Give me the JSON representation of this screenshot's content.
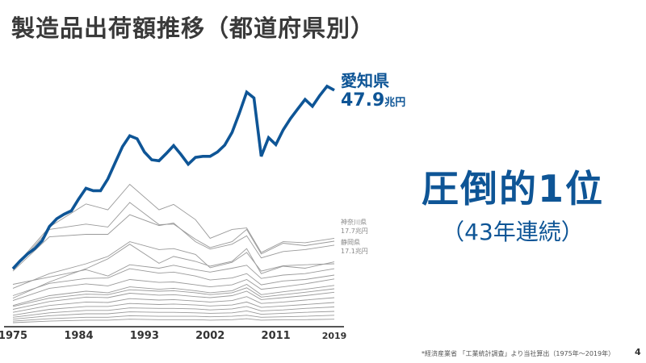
{
  "slide": {
    "title": "製造品出荷額推移（都道府県別）",
    "headline": "圧倒的1位",
    "subheadline": "（43年連続）",
    "footnote": "*経済産業省 「工業統計調査」より当社算出（1975年〜2019年）",
    "page_number": "4"
  },
  "labels": {
    "aichi_name": "愛知県",
    "aichi_value": "47.9",
    "aichi_unit": "兆円",
    "kanagawa_name": "神奈川県",
    "kanagawa_value": "17.7兆円",
    "shizuoka_name": "静岡県",
    "shizuoka_value": "17.1兆円"
  },
  "colors": {
    "accent": "#0e5596",
    "others": "#9a9a9a",
    "axis": "#555555"
  },
  "chart_data": {
    "type": "line",
    "title": "製造品出荷額推移（都道府県別）",
    "ylabel": "兆円",
    "ylim": [
      0,
      50
    ],
    "xlim": [
      1975,
      2019
    ],
    "x_ticks": [
      "1975",
      "1984",
      "1993",
      "2002",
      "2011",
      "2019"
    ],
    "grid": false,
    "highlight": {
      "name": "愛知県",
      "years": [
        1975,
        1976,
        1977,
        1978,
        1979,
        1980,
        1981,
        1982,
        1983,
        1984,
        1985,
        1986,
        1987,
        1988,
        1989,
        1990,
        1991,
        1992,
        1993,
        1994,
        1995,
        1996,
        1997,
        1998,
        1999,
        2000,
        2001,
        2002,
        2003,
        2004,
        2005,
        2006,
        2007,
        2008,
        2009,
        2010,
        2011,
        2012,
        2013,
        2014,
        2015,
        2016,
        2017,
        2018,
        2019
      ],
      "values": [
        11.5,
        13.1,
        14.5,
        15.6,
        17.2,
        20.1,
        21.7,
        22.6,
        23.3,
        25.7,
        27.9,
        27.4,
        27.4,
        29.8,
        33.1,
        36.4,
        38.6,
        38.0,
        35.3,
        33.7,
        33.5,
        35.0,
        36.6,
        34.8,
        32.8,
        34.2,
        34.4,
        34.4,
        35.3,
        36.7,
        39.3,
        43.2,
        47.5,
        46.3,
        34.4,
        38.2,
        36.8,
        39.8,
        42.1,
        44.1,
        46.0,
        44.6,
        46.8,
        48.7,
        47.9
      ]
    },
    "others_years": [
      1975,
      1980,
      1985,
      1988,
      1991,
      1995,
      1997,
      2000,
      2002,
      2005,
      2007,
      2009,
      2012,
      2015,
      2019
    ],
    "others": [
      {
        "name": "神奈川県",
        "values": [
          11.5,
          20,
          24.7,
          23.5,
          28.7,
          23.5,
          24.6,
          21.5,
          17.7,
          19.5,
          19.8,
          14.8,
          17,
          16.8,
          17.7
        ]
      },
      {
        "name": "静岡県",
        "values": [
          11.3,
          19.5,
          20.6,
          20,
          25,
          20.5,
          20.6,
          17.5,
          15.8,
          17,
          19.5,
          14.5,
          16.7,
          16.2,
          17.1
        ]
      },
      {
        "name": "other-3",
        "values": [
          11,
          18,
          18.5,
          18.5,
          22.5,
          20.3,
          20.8,
          17,
          15.5,
          16.5,
          18.2,
          13.7,
          15,
          15.4,
          16.3
        ]
      },
      {
        "name": "other-4",
        "values": [
          7.5,
          10.5,
          12.5,
          14,
          17,
          15.4,
          15.6,
          14.4,
          11.7,
          12.8,
          14.8,
          11,
          12.1,
          12.3,
          12.5
        ]
      },
      {
        "name": "other-5",
        "values": [
          5.5,
          8.8,
          11.5,
          13.5,
          16.5,
          12.6,
          14,
          13,
          12,
          13,
          15.6,
          10.5,
          12,
          11.6,
          12.9
        ]
      },
      {
        "name": "other-6",
        "values": [
          8.3,
          9.8,
          11.3,
          10,
          12.3,
          11.6,
          12.2,
          11.3,
          10.8,
          11.6,
          12.2,
          9.5,
          10.2,
          10.5,
          11.5
        ]
      },
      {
        "name": "other-7",
        "values": [
          6,
          8.5,
          9.5,
          9.6,
          11.5,
          10.6,
          10.8,
          10,
          9.2,
          9.6,
          10.5,
          8.2,
          9,
          9.3,
          10.2
        ]
      },
      {
        "name": "other-8",
        "values": [
          5,
          7.5,
          8.4,
          8,
          9.3,
          8.7,
          8.8,
          8.2,
          7.8,
          8.2,
          9.3,
          7.3,
          7.8,
          8.4,
          9.4
        ]
      },
      {
        "name": "other-9",
        "values": [
          4,
          6,
          6.9,
          6.6,
          7.8,
          7.3,
          7.5,
          7,
          6.6,
          7,
          8.3,
          6.2,
          6.8,
          7.3,
          8.1
        ]
      },
      {
        "name": "other-10",
        "values": [
          3.8,
          5.5,
          6.3,
          6.2,
          7.2,
          6.9,
          7,
          6.6,
          6.2,
          6.6,
          7.6,
          5.7,
          6.2,
          6.7,
          7.4
        ]
      },
      {
        "name": "other-11",
        "values": [
          3.2,
          4.8,
          5.7,
          5.6,
          6.5,
          6.1,
          6.2,
          5.8,
          5.6,
          6,
          6.9,
          5.2,
          5.6,
          6,
          6.7
        ]
      },
      {
        "name": "other-12",
        "values": [
          2.6,
          4,
          4.7,
          4.6,
          5.4,
          5.1,
          5.2,
          4.9,
          4.7,
          5,
          5.8,
          4.4,
          4.7,
          5.1,
          5.6
        ]
      },
      {
        "name": "other-13",
        "values": [
          2,
          3.2,
          3.8,
          3.8,
          4.4,
          4.2,
          4.3,
          4.1,
          3.9,
          4.1,
          4.7,
          3.6,
          3.9,
          4.2,
          4.6
        ]
      },
      {
        "name": "other-14",
        "values": [
          1.6,
          2.5,
          3,
          3,
          3.5,
          3.4,
          3.4,
          3.3,
          3.1,
          3.3,
          3.8,
          2.9,
          3.1,
          3.4,
          3.7
        ]
      },
      {
        "name": "other-15",
        "values": [
          1.2,
          1.9,
          2.3,
          2.3,
          2.7,
          2.6,
          2.6,
          2.5,
          2.4,
          2.5,
          2.9,
          2.2,
          2.4,
          2.6,
          2.8
        ]
      },
      {
        "name": "other-16",
        "values": [
          0.8,
          1.3,
          1.6,
          1.6,
          1.9,
          1.8,
          1.8,
          1.8,
          1.7,
          1.8,
          2,
          1.6,
          1.7,
          1.8,
          2
        ]
      },
      {
        "name": "other-17",
        "values": [
          0.5,
          0.8,
          1,
          1,
          1.2,
          1.1,
          1.1,
          1.1,
          1,
          1.1,
          1.3,
          1,
          1.1,
          1.1,
          1.2
        ]
      }
    ]
  }
}
